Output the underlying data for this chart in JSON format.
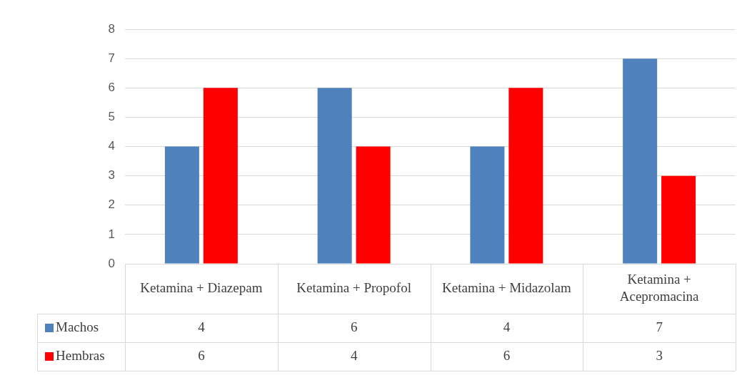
{
  "chart_data": {
    "type": "bar",
    "categories": [
      "Ketamina + Diazepam",
      "Ketamina + Propofol",
      "Ketamina + Midazolam",
      "Ketamina + Acepromacina"
    ],
    "series": [
      {
        "name": "Machos",
        "color": "#4f81bd",
        "values": [
          4,
          6,
          4,
          7
        ]
      },
      {
        "name": "Hembras",
        "color": "#ff0000",
        "values": [
          6,
          4,
          6,
          3
        ]
      }
    ],
    "ylim": [
      0,
      8
    ],
    "yticks": [
      0,
      1,
      2,
      3,
      4,
      5,
      6,
      7,
      8
    ],
    "grid": "y",
    "legend": "bottom",
    "data_labels": true
  }
}
